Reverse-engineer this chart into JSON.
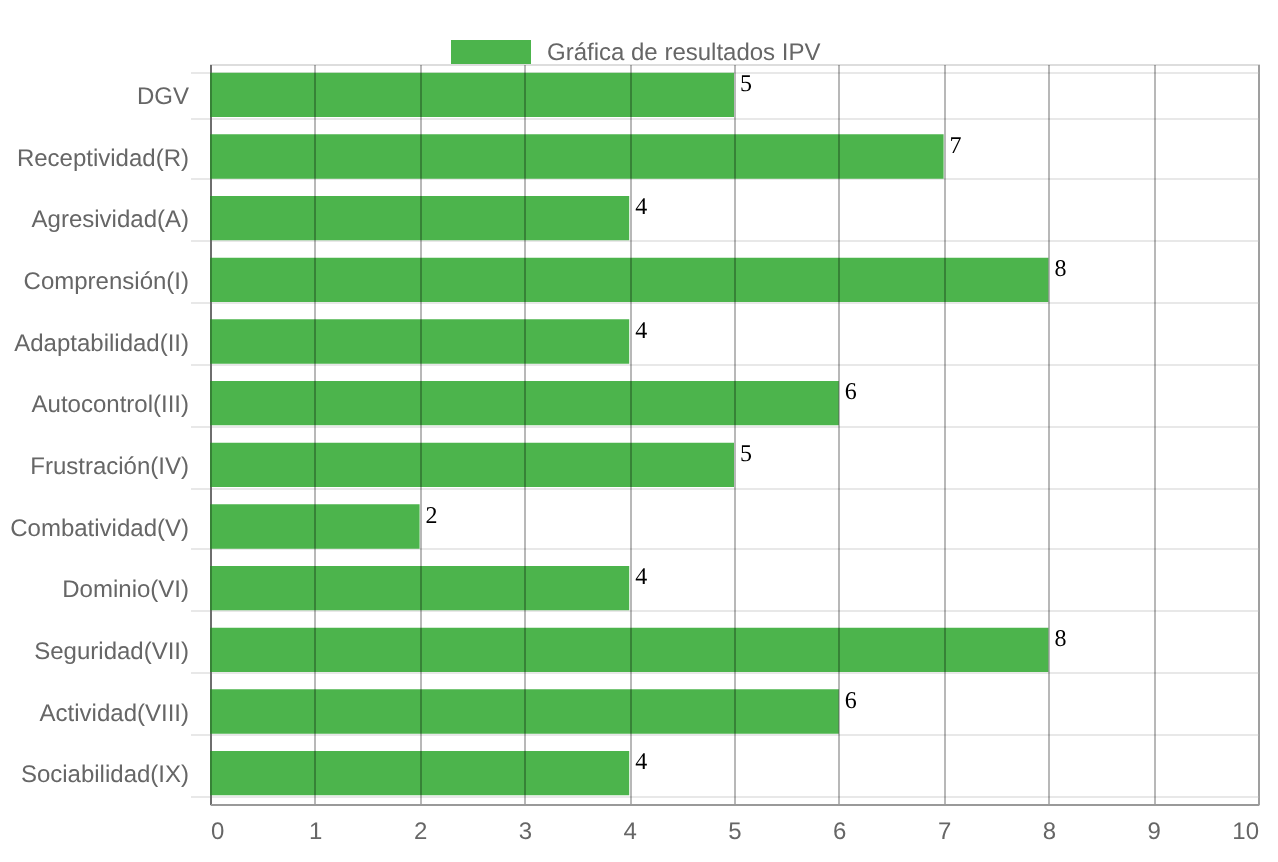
{
  "chart_data": {
    "type": "bar",
    "orientation": "horizontal",
    "categories": [
      "DGV",
      "Receptividad(R)",
      "Agresividad(A)",
      "Comprensión(I)",
      "Adaptabilidad(II)",
      "Autocontrol(III)",
      "Frustración(IV)",
      "Combatividad(V)",
      "Dominio(VI)",
      "Seguridad(VII)",
      "Actividad(VIII)",
      "Sociabilidad(IX)"
    ],
    "series": [
      {
        "name": "Gráfica de resultados IPV",
        "color": "#4cb44c",
        "values": [
          5,
          7,
          4,
          8,
          4,
          6,
          5,
          2,
          4,
          8,
          6,
          4
        ]
      }
    ],
    "xlim": [
      0,
      10
    ],
    "xticks": [
      0,
      1,
      2,
      3,
      4,
      5,
      6,
      7,
      8,
      9,
      10
    ],
    "grid": true,
    "legend": "top",
    "data_labels": true
  }
}
